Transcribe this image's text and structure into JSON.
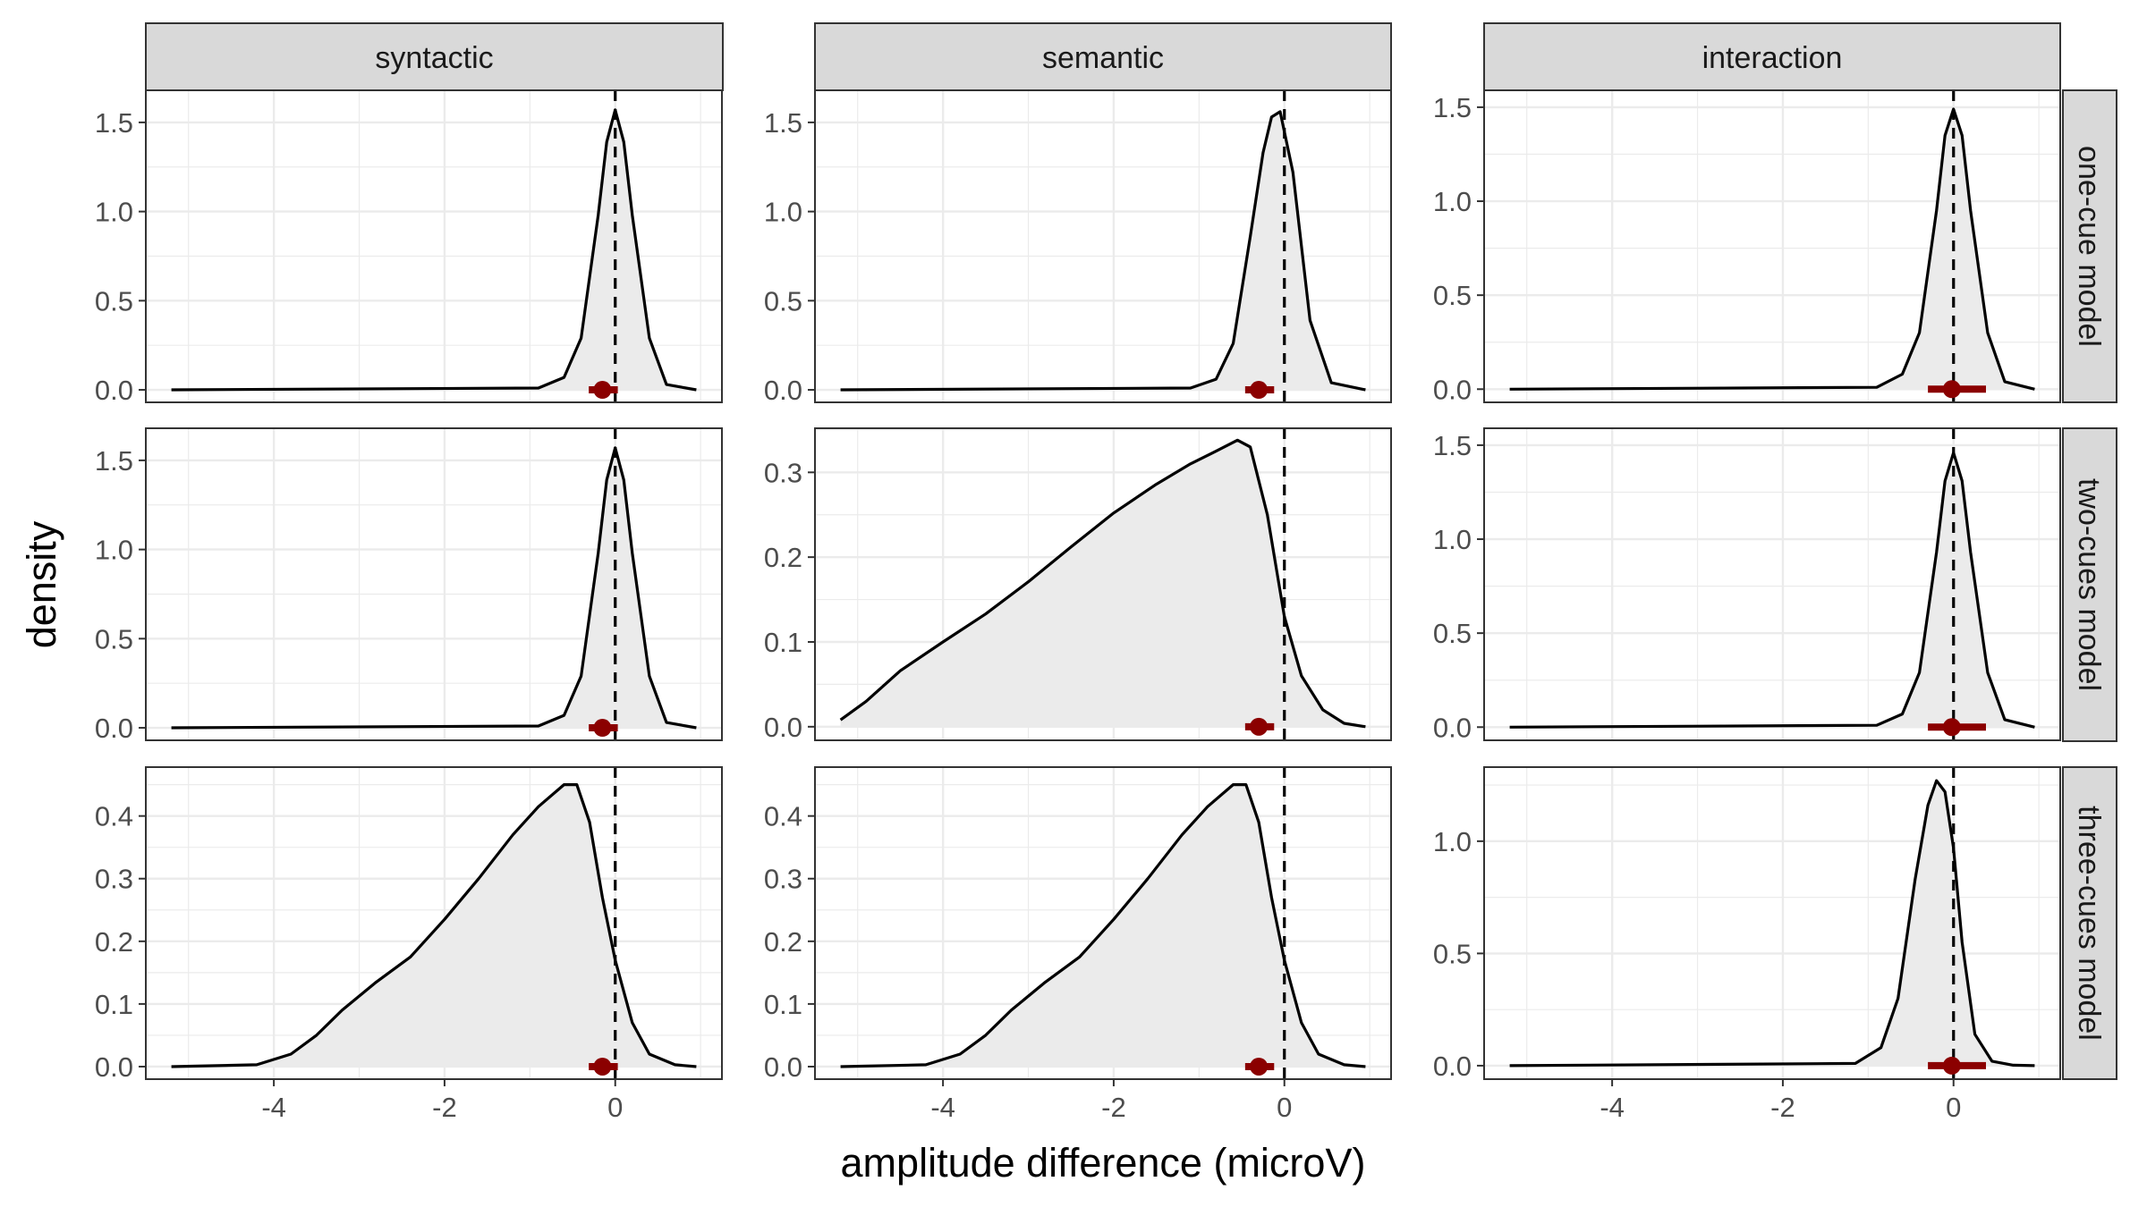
{
  "chart_data": {
    "type": "area",
    "xlabel": "amplitude difference (microV)",
    "ylabel": "density",
    "columns": [
      "syntactic",
      "semantic",
      "interaction"
    ],
    "rows": [
      "one-cue model",
      "two-cues model",
      "three-cues model"
    ],
    "xlim": [
      -5.5,
      1.25
    ],
    "xticks": [
      -4,
      -2,
      0
    ],
    "xtick_labels": [
      "-4",
      "-2",
      "0"
    ],
    "grid": true,
    "reference_line_x": 0,
    "colors": {
      "fill": "#ebebeb",
      "line": "#000000",
      "point": "#8b0000",
      "strip": "#d9d9d9"
    },
    "panels": [
      {
        "row": 0,
        "col": 0,
        "ylim": [
          -0.07,
          1.68
        ],
        "yticks": [
          0,
          0.5,
          1,
          1.5
        ],
        "ytick_labels": [
          "0.0",
          "0.5",
          "1.0",
          "1.5"
        ],
        "density": {
          "x": [
            -5.2,
            -0.9,
            -0.6,
            -0.4,
            -0.2,
            -0.1,
            0,
            0.1,
            0.2,
            0.4,
            0.6,
            0.95
          ],
          "y": [
            0,
            0.01,
            0.07,
            0.29,
            0.98,
            1.39,
            1.57,
            1.39,
            0.98,
            0.29,
            0.03,
            0
          ]
        },
        "point": -0.15,
        "interval": [
          -0.31,
          0.03
        ]
      },
      {
        "row": 0,
        "col": 1,
        "ylim": [
          -0.07,
          1.68
        ],
        "yticks": [
          0,
          0.5,
          1,
          1.5
        ],
        "ytick_labels": [
          "0.0",
          "0.5",
          "1.0",
          "1.5"
        ],
        "density": {
          "x": [
            -5.2,
            -1.1,
            -0.8,
            -0.6,
            -0.4,
            -0.25,
            -0.15,
            -0.05,
            0.1,
            0.3,
            0.55,
            0.95
          ],
          "y": [
            0,
            0.01,
            0.06,
            0.26,
            0.86,
            1.33,
            1.53,
            1.56,
            1.22,
            0.39,
            0.04,
            0
          ]
        },
        "point": -0.3,
        "interval": [
          -0.46,
          -0.12
        ]
      },
      {
        "row": 0,
        "col": 2,
        "ylim": [
          -0.07,
          1.59
        ],
        "yticks": [
          0,
          0.5,
          1,
          1.5
        ],
        "ytick_labels": [
          "0.0",
          "0.5",
          "1.0",
          "1.5"
        ],
        "density": {
          "x": [
            -5.2,
            -0.9,
            -0.6,
            -0.4,
            -0.2,
            -0.1,
            0,
            0.1,
            0.2,
            0.4,
            0.6,
            0.95
          ],
          "y": [
            0,
            0.01,
            0.08,
            0.3,
            0.95,
            1.35,
            1.49,
            1.35,
            0.95,
            0.3,
            0.04,
            0
          ]
        },
        "point": -0.02,
        "interval": [
          -0.3,
          0.38
        ]
      },
      {
        "row": 1,
        "col": 0,
        "ylim": [
          -0.07,
          1.68
        ],
        "yticks": [
          0,
          0.5,
          1,
          1.5
        ],
        "ytick_labels": [
          "0.0",
          "0.5",
          "1.0",
          "1.5"
        ],
        "density": {
          "x": [
            -5.2,
            -0.9,
            -0.6,
            -0.4,
            -0.2,
            -0.1,
            0,
            0.1,
            0.2,
            0.4,
            0.6,
            0.95
          ],
          "y": [
            0,
            0.01,
            0.07,
            0.29,
            0.98,
            1.39,
            1.57,
            1.39,
            0.98,
            0.29,
            0.03,
            0
          ]
        },
        "point": -0.15,
        "interval": [
          -0.31,
          0.03
        ]
      },
      {
        "row": 1,
        "col": 1,
        "ylim": [
          -0.016,
          0.352
        ],
        "yticks": [
          0,
          0.1,
          0.2,
          0.3
        ],
        "ytick_labels": [
          "0.0",
          "0.1",
          "0.2",
          "0.3"
        ],
        "density": {
          "x": [
            -5.2,
            -4.9,
            -4.5,
            -4,
            -3.5,
            -3,
            -2.5,
            -2,
            -1.5,
            -1.1,
            -0.8,
            -0.55,
            -0.4,
            -0.2,
            0,
            0.2,
            0.45,
            0.7,
            0.95
          ],
          "y": [
            0.008,
            0.03,
            0.066,
            0.1,
            0.133,
            0.171,
            0.212,
            0.252,
            0.286,
            0.31,
            0.325,
            0.338,
            0.33,
            0.25,
            0.13,
            0.06,
            0.02,
            0.004,
            0
          ]
        },
        "point": -0.3,
        "interval": [
          -0.46,
          -0.12
        ]
      },
      {
        "row": 1,
        "col": 2,
        "ylim": [
          -0.07,
          1.59
        ],
        "yticks": [
          0,
          0.5,
          1,
          1.5
        ],
        "ytick_labels": [
          "0.0",
          "0.5",
          "1.0",
          "1.5"
        ],
        "density": {
          "x": [
            -5.2,
            -0.9,
            -0.6,
            -0.4,
            -0.2,
            -0.1,
            0,
            0.1,
            0.2,
            0.4,
            0.6,
            0.95
          ],
          "y": [
            0,
            0.01,
            0.07,
            0.29,
            0.93,
            1.31,
            1.46,
            1.31,
            0.93,
            0.29,
            0.04,
            0
          ]
        },
        "point": -0.02,
        "interval": [
          -0.3,
          0.38
        ]
      },
      {
        "row": 2,
        "col": 0,
        "ylim": [
          -0.02,
          0.478
        ],
        "yticks": [
          0,
          0.1,
          0.2,
          0.3,
          0.4
        ],
        "ytick_labels": [
          "0.0",
          "0.1",
          "0.2",
          "0.3",
          "0.4"
        ],
        "density": {
          "x": [
            -5.2,
            -4.2,
            -3.8,
            -3.5,
            -3.2,
            -2.8,
            -2.4,
            -2,
            -1.6,
            -1.2,
            -0.9,
            -0.6,
            -0.45,
            -0.3,
            -0.15,
            0,
            0.2,
            0.4,
            0.7,
            0.95
          ],
          "y": [
            0,
            0.003,
            0.02,
            0.05,
            0.09,
            0.135,
            0.175,
            0.235,
            0.3,
            0.37,
            0.415,
            0.45,
            0.45,
            0.39,
            0.27,
            0.17,
            0.07,
            0.02,
            0.003,
            0
          ]
        },
        "point": -0.15,
        "interval": [
          -0.31,
          0.03
        ]
      },
      {
        "row": 2,
        "col": 1,
        "ylim": [
          -0.02,
          0.478
        ],
        "yticks": [
          0,
          0.1,
          0.2,
          0.3,
          0.4
        ],
        "ytick_labels": [
          "0.0",
          "0.1",
          "0.2",
          "0.3",
          "0.4"
        ],
        "density": {
          "x": [
            -5.2,
            -4.2,
            -3.8,
            -3.5,
            -3.2,
            -2.8,
            -2.4,
            -2,
            -1.6,
            -1.2,
            -0.9,
            -0.6,
            -0.45,
            -0.3,
            -0.15,
            0,
            0.2,
            0.4,
            0.7,
            0.95
          ],
          "y": [
            0,
            0.003,
            0.02,
            0.05,
            0.09,
            0.135,
            0.175,
            0.235,
            0.3,
            0.37,
            0.415,
            0.45,
            0.45,
            0.39,
            0.27,
            0.17,
            0.07,
            0.02,
            0.003,
            0
          ]
        },
        "point": -0.3,
        "interval": [
          -0.46,
          -0.12
        ]
      },
      {
        "row": 2,
        "col": 2,
        "ylim": [
          -0.06,
          1.33
        ],
        "yticks": [
          0,
          0.5,
          1
        ],
        "ytick_labels": [
          "0.0",
          "0.5",
          "1.0"
        ],
        "density": {
          "x": [
            -5.2,
            -1.15,
            -0.85,
            -0.65,
            -0.45,
            -0.3,
            -0.2,
            -0.1,
            0,
            0.1,
            0.25,
            0.45,
            0.7,
            0.95
          ],
          "y": [
            0,
            0.01,
            0.08,
            0.3,
            0.83,
            1.16,
            1.27,
            1.22,
            0.97,
            0.55,
            0.14,
            0.02,
            0.002,
            0
          ]
        },
        "point": -0.02,
        "interval": [
          -0.3,
          0.38
        ]
      }
    ]
  }
}
